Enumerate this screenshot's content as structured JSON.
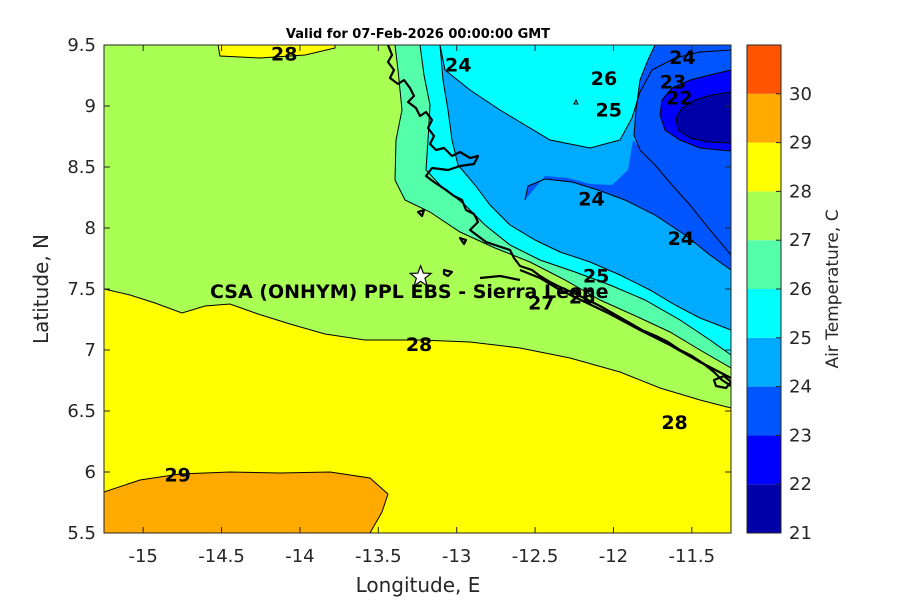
{
  "title": "Valid for 07-Feb-2026 00:00:00 GMT",
  "x_axis": {
    "label": "Longitude, E",
    "min": -15.25,
    "max": -11.25,
    "ticks": [
      "-15",
      "-14.5",
      "-14",
      "-13.5",
      "-13",
      "-12.5",
      "-12",
      "-11.5"
    ]
  },
  "y_axis": {
    "label": "Latitude, N",
    "min": 5.5,
    "max": 9.5,
    "ticks": [
      "5.5",
      "6",
      "6.5",
      "7",
      "7.5",
      "8",
      "8.5",
      "9",
      "9.5"
    ]
  },
  "colorbar": {
    "label": "Air Temperature, C",
    "ticks": [
      "21",
      "22",
      "23",
      "24",
      "25",
      "26",
      "27",
      "28",
      "29",
      "30"
    ],
    "colors": [
      "#0000a8",
      "#0000ff",
      "#0055ff",
      "#00aaff",
      "#00ffff",
      "#55ffaa",
      "#aaff55",
      "#ffff00",
      "#ffaa00",
      "#ff5500"
    ]
  },
  "site": {
    "name": "CSA (ONHYM) PPL EBS  - Sierra Leone",
    "lon": -13.23,
    "lat": 7.6,
    "marker": "star-icon"
  },
  "contour_labels": [
    {
      "text": "28",
      "lon": -14.1,
      "lat": 9.43
    },
    {
      "text": "24",
      "lon": -12.99,
      "lat": 9.34
    },
    {
      "text": "26",
      "lon": -12.06,
      "lat": 9.23
    },
    {
      "text": "24",
      "lon": -11.56,
      "lat": 9.4
    },
    {
      "text": "23",
      "lon": -11.62,
      "lat": 9.2
    },
    {
      "text": "22",
      "lon": -11.58,
      "lat": 9.07
    },
    {
      "text": "25",
      "lon": -12.03,
      "lat": 8.97
    },
    {
      "text": "24",
      "lon": -12.14,
      "lat": 8.24
    },
    {
      "text": "24",
      "lon": -11.57,
      "lat": 7.92
    },
    {
      "text": "25",
      "lon": -12.11,
      "lat": 7.61
    },
    {
      "text": "26",
      "lon": -12.2,
      "lat": 7.44
    },
    {
      "text": "27",
      "lon": -12.46,
      "lat": 7.39
    },
    {
      "text": "28",
      "lon": -13.24,
      "lat": 7.05
    },
    {
      "text": "28",
      "lon": -11.61,
      "lat": 6.41
    },
    {
      "text": "29",
      "lon": -14.78,
      "lat": 5.98
    }
  ]
}
